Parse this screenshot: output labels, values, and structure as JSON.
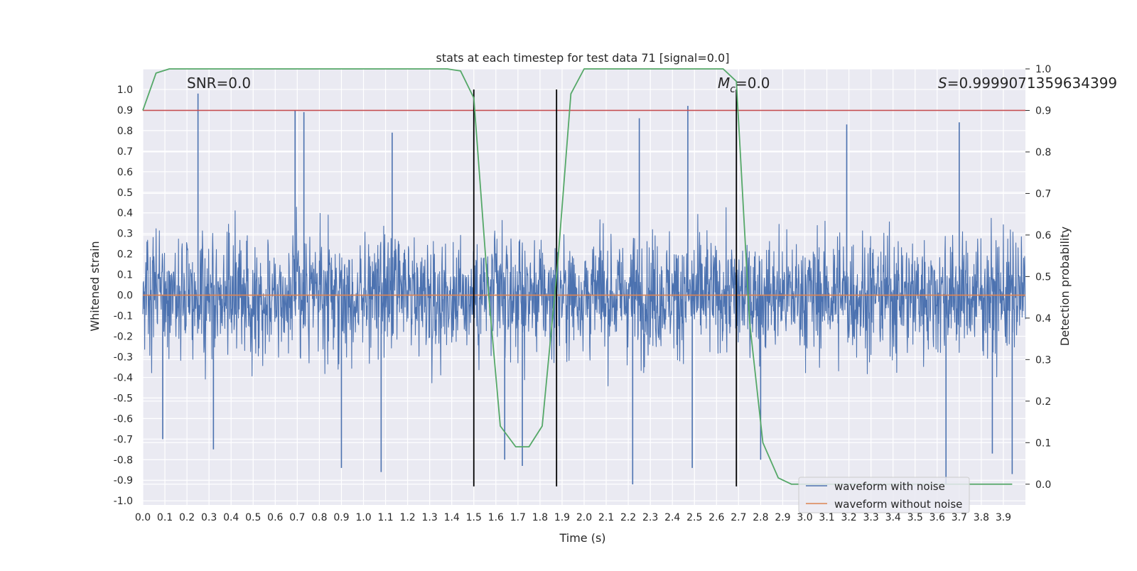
{
  "chart_data": {
    "type": "line",
    "title": "stats at each timestep for test data 71 [signal=0.0]",
    "xlabel": "Time (s)",
    "ylabel_left": "Whitened strain",
    "ylabel_right": "Detection probability",
    "xlim": [
      0.0,
      4.0
    ],
    "ylim_left": [
      -1.02,
      1.1
    ],
    "ylim_right": [
      -0.05,
      1.0
    ],
    "x_ticks": [
      "0.0",
      "0.1",
      "0.2",
      "0.3",
      "0.4",
      "0.5",
      "0.6",
      "0.7",
      "0.8",
      "0.9",
      "1.0",
      "1.1",
      "1.2",
      "1.3",
      "1.4",
      "1.5",
      "1.6",
      "1.7",
      "1.8",
      "1.9",
      "2.0",
      "2.1",
      "2.2",
      "2.3",
      "2.4",
      "2.5",
      "2.6",
      "2.7",
      "2.8",
      "2.9",
      "3.0",
      "3.1",
      "3.2",
      "3.3",
      "3.4",
      "3.5",
      "3.6",
      "3.7",
      "3.8",
      "3.9"
    ],
    "y_ticks_left": [
      "1.0",
      "0.9",
      "0.8",
      "0.7",
      "0.6",
      "0.5",
      "0.4",
      "0.3",
      "0.2",
      "0.1",
      "0.0",
      "-0.1",
      "-0.2",
      "-0.3",
      "-0.4",
      "-0.5",
      "-0.6",
      "-0.7",
      "-0.8",
      "-0.9",
      "-1.0"
    ],
    "y_ticks_right": [
      "1.0",
      "0.9",
      "0.8",
      "0.7",
      "0.6",
      "0.5",
      "0.4",
      "0.3",
      "0.2",
      "0.1",
      "0.0"
    ],
    "annotations": {
      "snr": "SNR=0.0",
      "mc_symbol": "M",
      "mc_subscript": "c",
      "mc_value": "=0.0",
      "s_symbol": "S",
      "s_value": "=0.9999071359634399"
    },
    "series": [
      {
        "name": "waveform with noise",
        "color": "#4c72b0",
        "description": "dense noise trace, approx. within [-0.45, 0.45] with spikes",
        "spikes": [
          {
            "x": 0.25,
            "y": 0.98
          },
          {
            "x": 0.69,
            "y": 0.9
          },
          {
            "x": 0.73,
            "y": 0.89
          },
          {
            "x": 2.47,
            "y": 0.92
          },
          {
            "x": 2.25,
            "y": 0.86
          },
          {
            "x": 3.7,
            "y": 0.84
          },
          {
            "x": 3.19,
            "y": 0.83
          },
          {
            "x": 1.13,
            "y": 0.79
          },
          {
            "x": 0.32,
            "y": -0.75
          },
          {
            "x": 0.09,
            "y": -0.7
          },
          {
            "x": 0.9,
            "y": -0.84
          },
          {
            "x": 1.08,
            "y": -0.86
          },
          {
            "x": 1.64,
            "y": -0.8
          },
          {
            "x": 1.72,
            "y": -0.83
          },
          {
            "x": 2.22,
            "y": -0.92
          },
          {
            "x": 2.49,
            "y": -0.84
          },
          {
            "x": 2.8,
            "y": -0.8
          },
          {
            "x": 3.64,
            "y": -0.92
          },
          {
            "x": 3.94,
            "y": -0.87
          },
          {
            "x": 3.85,
            "y": -0.77
          }
        ]
      },
      {
        "name": "waveform without noise",
        "color": "#dd8452",
        "x": [
          0.0,
          4.0
        ],
        "y": [
          0.0,
          0.0
        ]
      }
    ],
    "detection_probability": {
      "color": "#55a868",
      "x": [
        0.0,
        0.06,
        0.12,
        0.2,
        0.5,
        1.0,
        1.3,
        1.38,
        1.44,
        1.5,
        1.56,
        1.62,
        1.69,
        1.75,
        1.81,
        1.88,
        1.94,
        2.0,
        2.3,
        2.6,
        2.63,
        2.69,
        2.75,
        2.81,
        2.88,
        2.94,
        3.0,
        3.5,
        3.94
      ],
      "y": [
        0.9,
        0.99,
        1.0,
        1.0,
        1.0,
        1.0,
        1.0,
        1.0,
        0.995,
        0.93,
        0.5,
        0.14,
        0.09,
        0.09,
        0.14,
        0.53,
        0.94,
        1.0,
        1.0,
        1.0,
        1.0,
        0.97,
        0.39,
        0.1,
        0.015,
        0.0,
        0.0,
        0.0,
        0.0
      ]
    },
    "threshold": {
      "value_right": 0.9,
      "color": "#c44e52"
    },
    "event_markers_x": [
      1.5,
      1.875,
      2.69
    ],
    "event_marker_y_range": [
      -0.93,
      1.0
    ],
    "legend": {
      "placement": "lower-right",
      "entries": [
        "waveform with noise",
        "waveform without noise"
      ]
    },
    "grid": true
  }
}
